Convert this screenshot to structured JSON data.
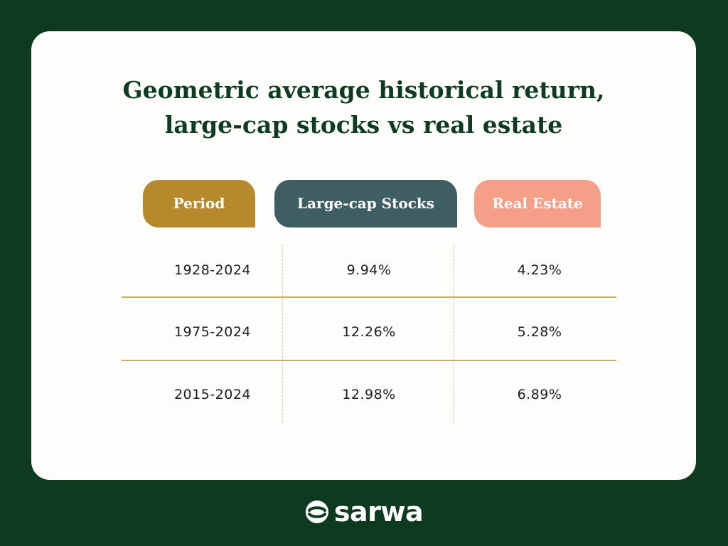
{
  "title": {
    "line1": "Geometric average historical return,",
    "line2": "large-cap stocks vs real estate"
  },
  "table": {
    "headers": [
      "Period",
      "Large-cap Stocks",
      "Real Estate"
    ],
    "rows": [
      [
        "1928-2024",
        "9.94%",
        "4.23%"
      ],
      [
        "1975-2024",
        "12.26%",
        "5.28%"
      ],
      [
        "2015-2024",
        "12.98%",
        "6.89%"
      ]
    ]
  },
  "brand": {
    "name": "sarwa",
    "icon": "sarwa-logo-mark-icon"
  },
  "colors": {
    "background": "#0e3a1f",
    "card": "#fdfdfb",
    "title": "#0f3b21",
    "period_header": "#b68a2c",
    "stocks_header": "#3e5e64",
    "real_estate_header": "#f59f89",
    "row_divider": "#c9ad63",
    "column_divider": "#e0c89a"
  }
}
